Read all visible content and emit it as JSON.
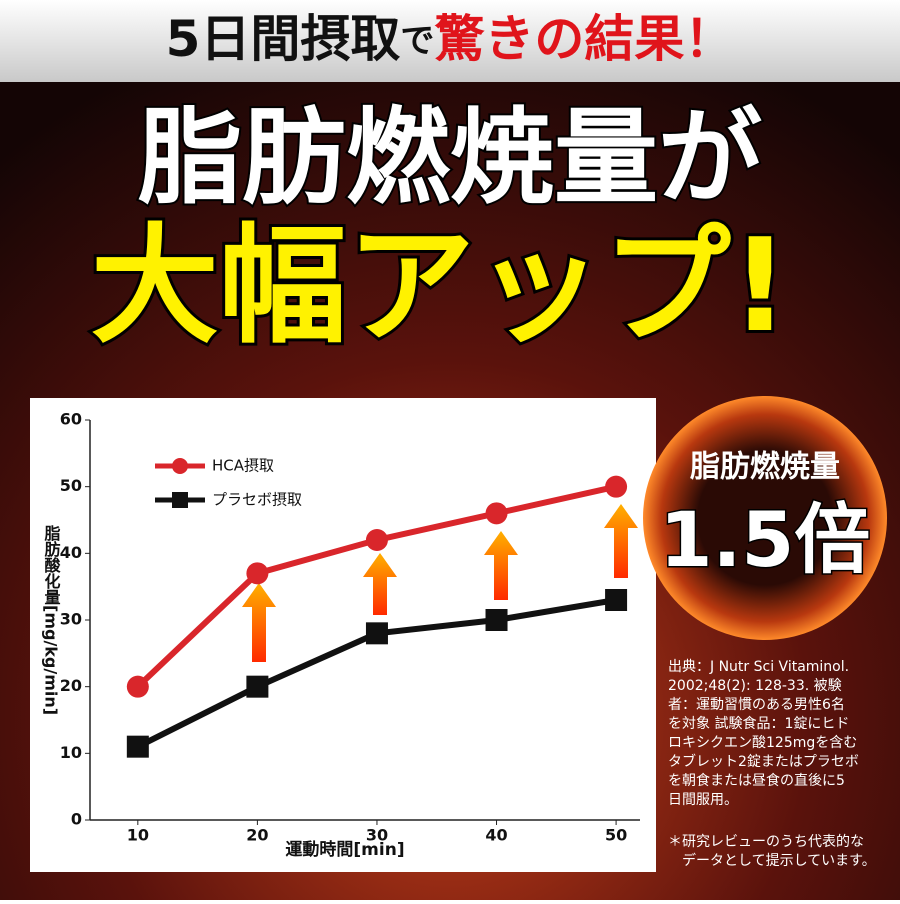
{
  "banner": [
    "5日間摂取",
    "で",
    "驚きの結果！"
  ],
  "headline": [
    "脂肪燃焼量が",
    "大幅アップ!"
  ],
  "badge": {
    "label": "脂肪燃焼量",
    "value": "1.5倍"
  },
  "source": [
    "出典：J Nutr Sci Vitaminol.",
    "2002;48(2): 128-33. 被験",
    "者：運動習慣のある男性6名",
    "を対象 試験食品：1錠にヒド",
    "ロキシクエン酸125mgを含む",
    "タブレット2錠またはプラセボ",
    "を朝食または昼食の直後に5",
    "日間服用。"
  ],
  "footnote": [
    "＊研究レビューのうち代表的な",
    "データとして提示しています。"
  ],
  "chart_data": {
    "type": "line",
    "x_label": "運動時間[min]",
    "y_label": "脂肪酸化量[mg/kg/min]",
    "x": [
      10,
      20,
      30,
      40,
      50
    ],
    "series": [
      {
        "name": "HCA摂取",
        "color": "#d9262b",
        "marker": "circle",
        "values": [
          20,
          37,
          42,
          46,
          50
        ]
      },
      {
        "name": "プラセボ摂取",
        "color": "#111111",
        "marker": "square",
        "values": [
          11,
          20,
          28,
          30,
          33
        ]
      }
    ],
    "xlim": [
      6,
      52
    ],
    "xticks": [
      10,
      20,
      30,
      40,
      50
    ],
    "ylim": [
      0,
      60
    ],
    "yticks": [
      0,
      10,
      20,
      30,
      40,
      50,
      60
    ],
    "legend": "top-left",
    "grid": false
  }
}
